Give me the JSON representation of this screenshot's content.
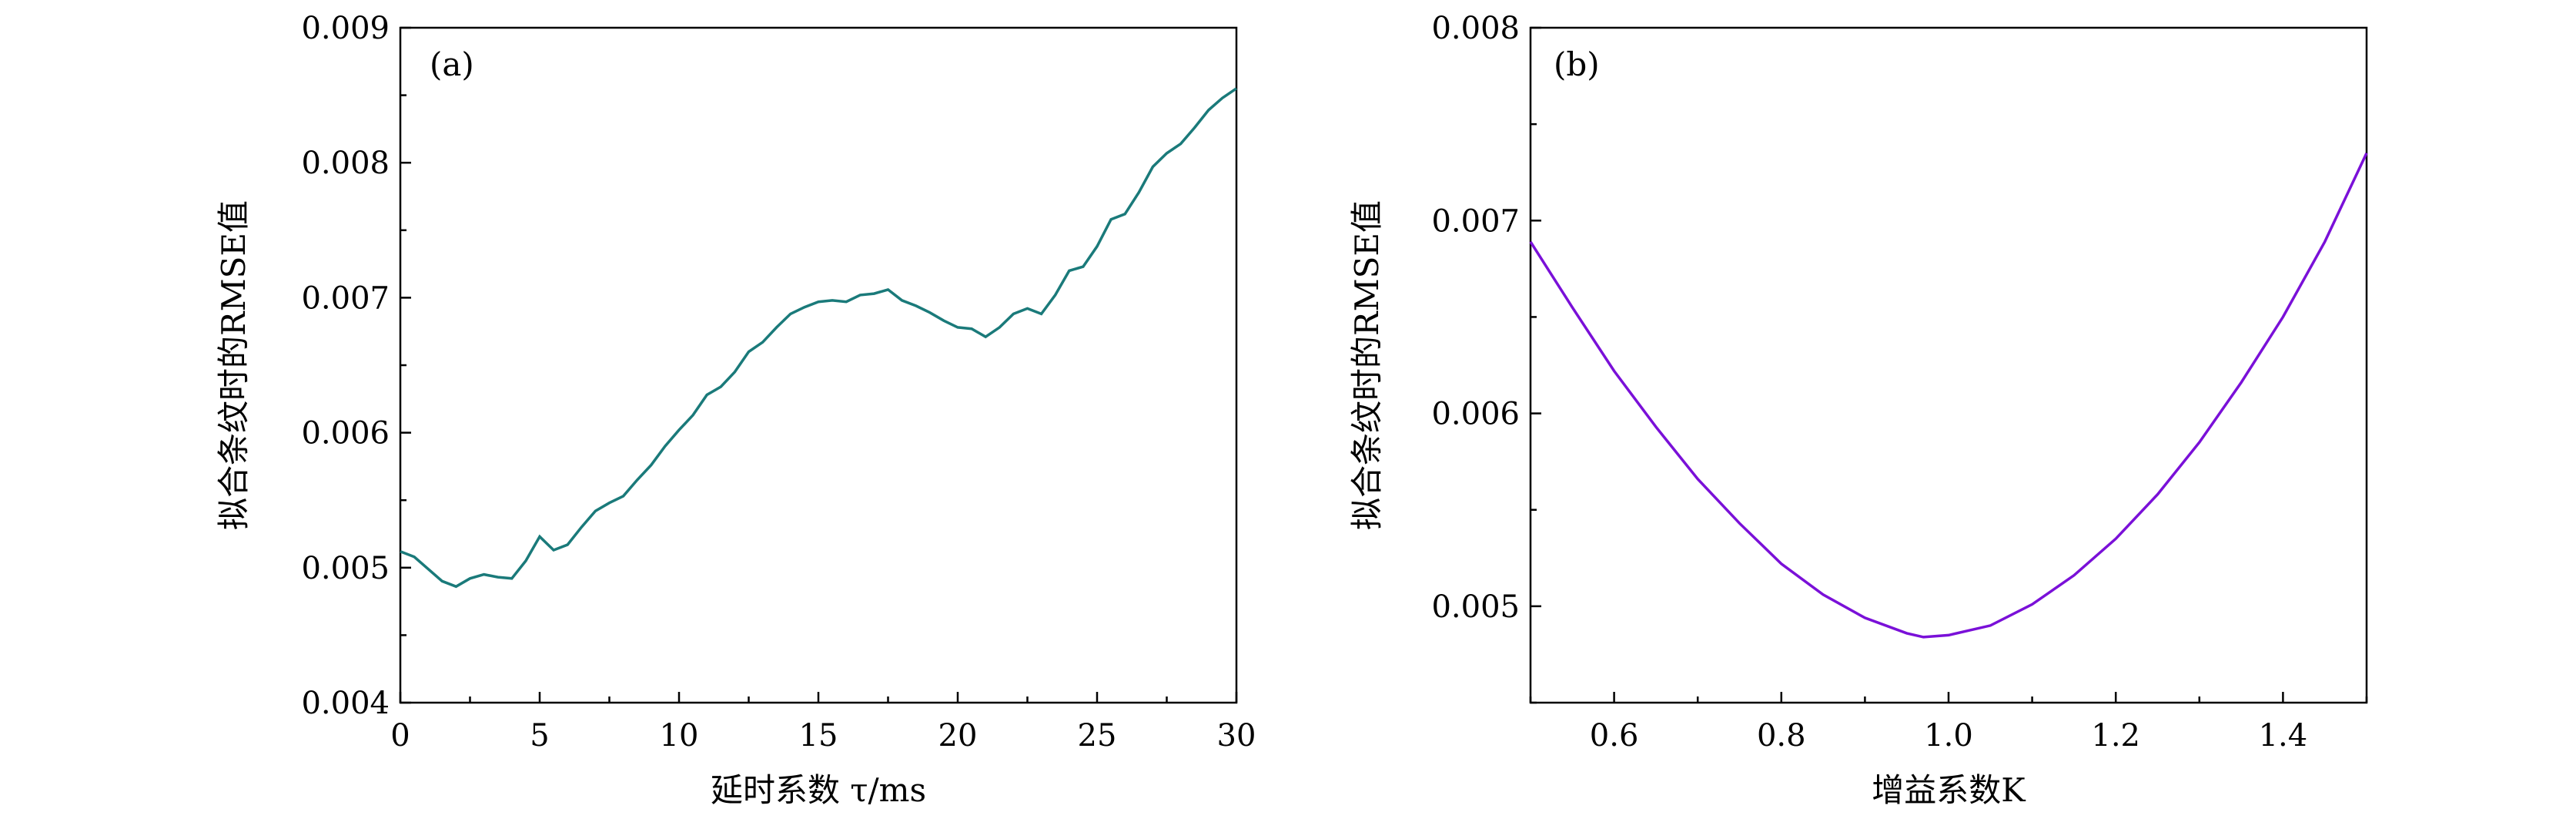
{
  "chart_data": [
    {
      "type": "line",
      "panel_label": "(a)",
      "xlabel": "延时系数 τ/ms",
      "ylabel": "拟合条纹时的RMSE值",
      "xlim": [
        0,
        30
      ],
      "ylim": [
        0.004,
        0.009
      ],
      "xticks": [
        0,
        5,
        10,
        15,
        20,
        25,
        30
      ],
      "xtick_labels": [
        "0",
        "5",
        "10",
        "15",
        "20",
        "25",
        "30"
      ],
      "yticks": [
        0.004,
        0.005,
        0.006,
        0.007,
        0.008,
        0.009
      ],
      "ytick_labels": [
        "0.004",
        "0.005",
        "0.006",
        "0.007",
        "0.008",
        "0.009"
      ],
      "color": "#1a7a7a",
      "series": [
        {
          "x": [
            0,
            0.5,
            1,
            1.5,
            2,
            2.5,
            3,
            3.5,
            4,
            4.5,
            5,
            5.5,
            6,
            6.5,
            7,
            7.5,
            8,
            8.5,
            9,
            9.5,
            10,
            10.5,
            11,
            11.5,
            12,
            12.5,
            13,
            13.5,
            14,
            14.5,
            15,
            15.5,
            16,
            16.5,
            17,
            17.5,
            18,
            18.5,
            19,
            19.5,
            20,
            20.5,
            21,
            21.5,
            22,
            22.5,
            23,
            23.5,
            24,
            24.5,
            25,
            25.5,
            26,
            26.5,
            27,
            27.5,
            28,
            28.5,
            29,
            29.5,
            30
          ],
          "y": [
            0.00512,
            0.00508,
            0.00499,
            0.0049,
            0.00486,
            0.00492,
            0.00495,
            0.00493,
            0.00492,
            0.00505,
            0.00523,
            0.00513,
            0.00517,
            0.0053,
            0.00542,
            0.00548,
            0.00553,
            0.00565,
            0.00576,
            0.0059,
            0.00602,
            0.00613,
            0.00628,
            0.00634,
            0.00645,
            0.0066,
            0.00667,
            0.00678,
            0.00688,
            0.00693,
            0.00697,
            0.00698,
            0.00697,
            0.00702,
            0.00703,
            0.00706,
            0.00698,
            0.00694,
            0.00689,
            0.00683,
            0.00678,
            0.00677,
            0.00671,
            0.00678,
            0.00688,
            0.00692,
            0.00688,
            0.00702,
            0.0072,
            0.00723,
            0.00738,
            0.00758,
            0.00762,
            0.00778,
            0.00797,
            0.00807,
            0.00814,
            0.00826,
            0.00839,
            0.00848,
            0.00855
          ]
        }
      ]
    },
    {
      "type": "line",
      "panel_label": "(b)",
      "xlabel": "增益系数K",
      "ylabel": "拟合条纹时的RMSE值",
      "xlim": [
        0.5,
        1.5
      ],
      "ylim": [
        0.0045,
        0.008
      ],
      "xticks": [
        0.6,
        0.8,
        1.0,
        1.2,
        1.4
      ],
      "xtick_labels": [
        "0.6",
        "0.8",
        "1.0",
        "1.2",
        "1.4"
      ],
      "yticks": [
        0.005,
        0.006,
        0.007,
        0.008
      ],
      "ytick_labels": [
        "0.005",
        "0.006",
        "0.007",
        "0.008"
      ],
      "color": "#7a10d8",
      "series": [
        {
          "x": [
            0.5,
            0.55,
            0.6,
            0.65,
            0.7,
            0.75,
            0.8,
            0.85,
            0.9,
            0.95,
            0.97,
            1.0,
            1.05,
            1.1,
            1.15,
            1.2,
            1.25,
            1.3,
            1.35,
            1.4,
            1.45,
            1.5
          ],
          "y": [
            0.00689,
            0.00655,
            0.00622,
            0.00593,
            0.00566,
            0.00543,
            0.00522,
            0.00506,
            0.00494,
            0.00486,
            0.00484,
            0.00485,
            0.0049,
            0.00501,
            0.00516,
            0.00535,
            0.00558,
            0.00585,
            0.00616,
            0.0065,
            0.00689,
            0.00735
          ]
        }
      ]
    }
  ]
}
